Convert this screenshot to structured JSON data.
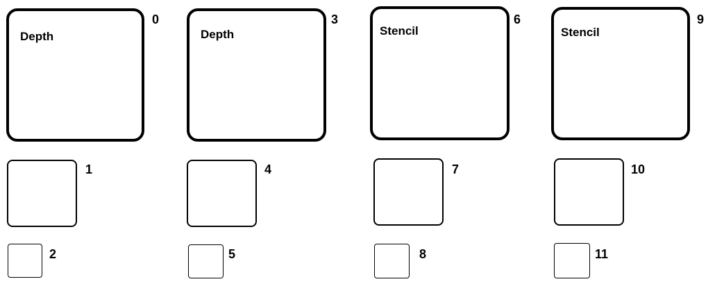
{
  "columns": [
    {
      "large": {
        "title": "Depth",
        "index": "0"
      },
      "medium": {
        "index": "1"
      },
      "small": {
        "index": "2"
      }
    },
    {
      "large": {
        "title": "Depth",
        "index": "3"
      },
      "medium": {
        "index": "4"
      },
      "small": {
        "index": "5"
      }
    },
    {
      "large": {
        "title": "Stencil",
        "index": "6"
      },
      "medium": {
        "index": "7"
      },
      "small": {
        "index": "8"
      }
    },
    {
      "large": {
        "title": "Stencil",
        "index": "9"
      },
      "medium": {
        "index": "10"
      },
      "small": {
        "index": "11"
      }
    }
  ]
}
